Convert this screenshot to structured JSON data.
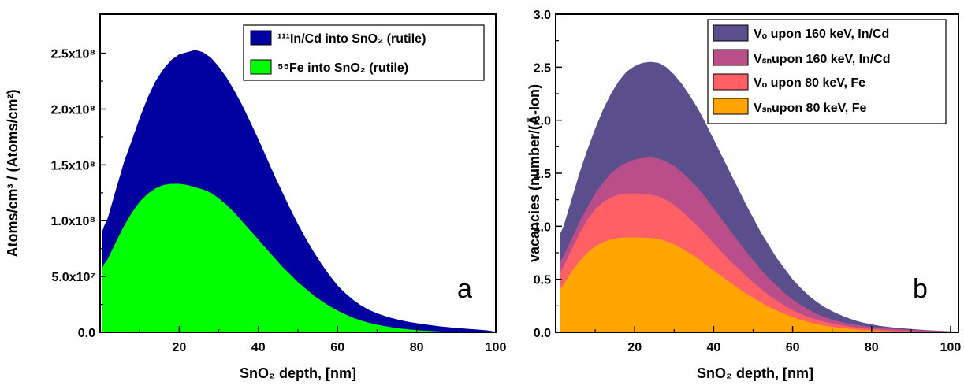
{
  "chart_data": [
    {
      "type": "area",
      "panel_label": "a",
      "xlabel": "SnO₂ depth, [nm]",
      "ylabel": "Atoms/cm³ / (Atoms/cm²)",
      "xlim": [
        0,
        100
      ],
      "ylim": [
        0,
        285000000.0
      ],
      "x_ticks": [
        20,
        40,
        60,
        80,
        100
      ],
      "y_ticks": [
        0,
        50000000.0,
        100000000.0,
        150000000.0,
        200000000.0,
        250000000.0
      ],
      "y_tick_labels": [
        "0.0",
        "5.0x10⁷",
        "1.0x10⁸",
        "1.5x10⁸",
        "2.0x10⁸",
        "2.5x10⁸"
      ],
      "legend_position": "top-right",
      "x": [
        0.5,
        1,
        2,
        4,
        6,
        8,
        10,
        12,
        14,
        16,
        18,
        20,
        22,
        24,
        26,
        28,
        30,
        32,
        34,
        36,
        38,
        40,
        42,
        44,
        46,
        48,
        50,
        52,
        54,
        56,
        58,
        60,
        62,
        64,
        66,
        68,
        70,
        72,
        74,
        76,
        78,
        80,
        82,
        84,
        86,
        88,
        90,
        92,
        94,
        96,
        98,
        100
      ],
      "series": [
        {
          "name": "¹¹¹In/Cd into SnO₂ (rutile)",
          "color": "#0000a0",
          "values": [
            90000000.0,
            95000000.0,
            103000000.0,
            128000000.0,
            152000000.0,
            172000000.0,
            192000000.0,
            210000000.0,
            225000000.0,
            236000000.0,
            244000000.0,
            249000000.0,
            251000000.0,
            253000000.0,
            251000000.0,
            246000000.0,
            238000000.0,
            228000000.0,
            216000000.0,
            203000000.0,
            188000000.0,
            173000000.0,
            157000000.0,
            141000000.0,
            126000000.0,
            111000000.0,
            97000000.0,
            84000000.0,
            72000000.0,
            61000000.0,
            51000000.0,
            42000000.0,
            35000000.0,
            29000000.0,
            24000000.0,
            20000000.0,
            17000000.0,
            14500000.0,
            12500000.0,
            10800000.0,
            9400000.0,
            8200000.0,
            7100000.0,
            6200000.0,
            5300000.0,
            4600000.0,
            3900000.0,
            3300000.0,
            2800000.0,
            2300000.0,
            1700000.0,
            500000.0
          ]
        },
        {
          "name": "⁵⁵Fe  into SnO₂ (rutile)",
          "color": "#00ff00",
          "values": [
            57000000.0,
            61000000.0,
            66000000.0,
            81000000.0,
            95000000.0,
            107000000.0,
            117000000.0,
            124000000.0,
            129000000.0,
            132000000.0,
            133000000.0,
            133000000.0,
            132000000.0,
            130000000.0,
            128000000.0,
            125000000.0,
            120000000.0,
            114000000.0,
            107000000.0,
            99000000.0,
            91000000.0,
            83000000.0,
            75000000.0,
            67000000.0,
            59000000.0,
            52000000.0,
            45000000.0,
            39000000.0,
            33000000.0,
            28000000.0,
            23500000.0,
            19500000.0,
            16000000.0,
            13000000.0,
            10500000.0,
            8500000.0,
            6800000.0,
            5400000.0,
            4300000.0,
            3400000.0,
            2600000.0,
            2000000.0,
            1500000.0,
            1100000.0,
            800000.0,
            600000.0,
            400000.0,
            300000.0,
            200000.0,
            100000.0,
            50000.0,
            0
          ]
        }
      ]
    },
    {
      "type": "area",
      "panel_label": "b",
      "xlabel": "SnO₂ depth, [nm]",
      "ylabel": "vacancies (number/(Å-Ion)",
      "xlim": [
        0,
        102
      ],
      "ylim": [
        0,
        3.0
      ],
      "x_ticks": [
        20,
        40,
        60,
        80,
        100
      ],
      "y_ticks": [
        0,
        0.5,
        1.0,
        1.5,
        2.0,
        2.5,
        3.0
      ],
      "y_tick_labels": [
        "0.0",
        "0.5",
        "1.0",
        "1.5",
        "2.0",
        "2.5",
        "3.0"
      ],
      "legend_position": "top-right",
      "x": [
        1,
        2,
        4,
        6,
        8,
        10,
        12,
        14,
        16,
        18,
        20,
        22,
        24,
        26,
        28,
        30,
        32,
        34,
        36,
        38,
        40,
        42,
        44,
        46,
        48,
        50,
        52,
        54,
        56,
        58,
        60,
        62,
        64,
        66,
        68,
        70,
        72,
        74,
        76,
        78,
        80,
        82,
        84,
        86,
        88,
        90,
        92,
        94,
        96,
        98,
        100,
        102
      ],
      "series": [
        {
          "name": "Vₒ upon 160 keV, In/Cd",
          "color": "#5a4e8c",
          "values": [
            0.92,
            1.0,
            1.25,
            1.5,
            1.72,
            1.92,
            2.1,
            2.25,
            2.37,
            2.46,
            2.51,
            2.54,
            2.55,
            2.54,
            2.5,
            2.43,
            2.34,
            2.23,
            2.11,
            1.97,
            1.82,
            1.67,
            1.52,
            1.37,
            1.22,
            1.08,
            0.94,
            0.82,
            0.7,
            0.6,
            0.5,
            0.42,
            0.35,
            0.29,
            0.24,
            0.2,
            0.165,
            0.135,
            0.11,
            0.09,
            0.075,
            0.062,
            0.052,
            0.044,
            0.037,
            0.031,
            0.026,
            0.021,
            0.017,
            0.013,
            0.009,
            0.005
          ]
        },
        {
          "name": "Vₛₙupon 160 keV, In/Cd",
          "color": "#b94e8a",
          "values": [
            0.66,
            0.72,
            0.88,
            1.04,
            1.18,
            1.31,
            1.41,
            1.5,
            1.56,
            1.6,
            1.63,
            1.645,
            1.65,
            1.64,
            1.61,
            1.57,
            1.51,
            1.44,
            1.36,
            1.27,
            1.17,
            1.07,
            0.97,
            0.87,
            0.77,
            0.68,
            0.59,
            0.51,
            0.44,
            0.37,
            0.31,
            0.26,
            0.215,
            0.175,
            0.145,
            0.12,
            0.1,
            0.083,
            0.07,
            0.059,
            0.05,
            0.043,
            0.037,
            0.032,
            0.027,
            0.023,
            0.019,
            0.016,
            0.013,
            0.01,
            0.007,
            0.004
          ]
        },
        {
          "name": "Vₒ upon 80 keV, Fe",
          "color": "#ff6065",
          "values": [
            0.56,
            0.62,
            0.78,
            0.93,
            1.06,
            1.16,
            1.23,
            1.27,
            1.3,
            1.31,
            1.31,
            1.305,
            1.3,
            1.28,
            1.25,
            1.2,
            1.14,
            1.07,
            1.0,
            0.92,
            0.84,
            0.76,
            0.68,
            0.61,
            0.54,
            0.47,
            0.41,
            0.35,
            0.3,
            0.25,
            0.21,
            0.175,
            0.145,
            0.12,
            0.1,
            0.083,
            0.069,
            0.057,
            0.047,
            0.039,
            0.032,
            0.026,
            0.021,
            0.017,
            0.014,
            0.011,
            0.009,
            0.007,
            0.005,
            0.004,
            0.002,
            0.001
          ]
        },
        {
          "name": "Vₛₙupon 80 keV, Fe",
          "color": "#ffa500",
          "values": [
            0.4,
            0.45,
            0.57,
            0.67,
            0.75,
            0.81,
            0.85,
            0.875,
            0.89,
            0.895,
            0.895,
            0.893,
            0.89,
            0.88,
            0.86,
            0.83,
            0.79,
            0.745,
            0.695,
            0.64,
            0.585,
            0.53,
            0.475,
            0.42,
            0.37,
            0.325,
            0.28,
            0.24,
            0.205,
            0.172,
            0.143,
            0.118,
            0.097,
            0.079,
            0.064,
            0.052,
            0.042,
            0.034,
            0.027,
            0.021,
            0.017,
            0.013,
            0.01,
            0.008,
            0.006,
            0.0045,
            0.0035,
            0.0025,
            0.0018,
            0.0012,
            0.0007,
            0.0003
          ]
        }
      ]
    }
  ]
}
